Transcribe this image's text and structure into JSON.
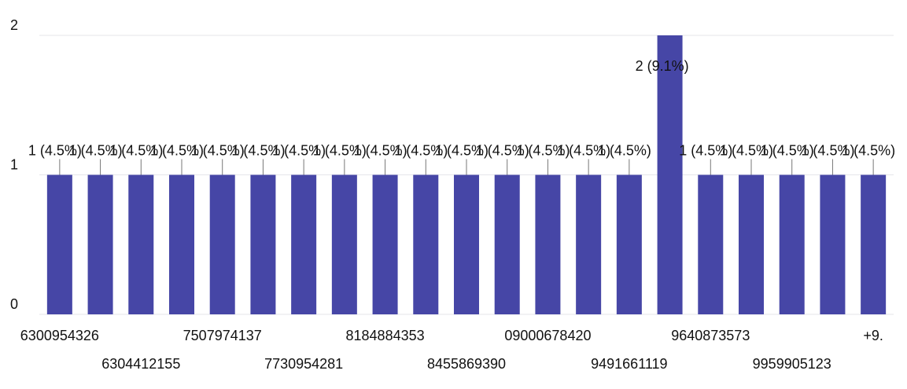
{
  "chart_data": {
    "type": "bar",
    "categories": [
      "6300954326",
      null,
      "6304412155",
      null,
      "7507974137",
      null,
      "7730954281",
      null,
      "8184884353",
      null,
      "8455869390",
      null,
      "09000678420",
      null,
      "9491661119",
      null,
      "9640873573",
      null,
      "9959905123",
      null,
      "+9."
    ],
    "values": [
      1,
      1,
      1,
      1,
      1,
      1,
      1,
      1,
      1,
      1,
      1,
      1,
      1,
      1,
      1,
      2,
      1,
      1,
      1,
      1,
      1
    ],
    "value_labels": [
      "1 (4.5%)",
      "1 (4.5%)",
      "1 (4.5%)",
      "1 (4.5%)",
      "1 (4.5%)",
      "1 (4.5%)",
      "1 (4.5%)",
      "1 (4.5%)",
      "1 (4.5%)",
      "1 (4.5%)",
      "1 (4.5%)",
      "1 (4.5%)",
      "1 (4.5%)",
      "1 (4.5%)",
      "1 (4.5%)",
      "2 (9.1%)",
      "1 (4.5%)",
      "1 (4.5%)",
      "1 (4.5%)",
      "1 (4.5%)",
      "1 (4.5%)"
    ],
    "color": "#4646a6",
    "ylim": [
      0,
      2
    ],
    "yticks": [
      0,
      1,
      2
    ],
    "grid": true
  }
}
